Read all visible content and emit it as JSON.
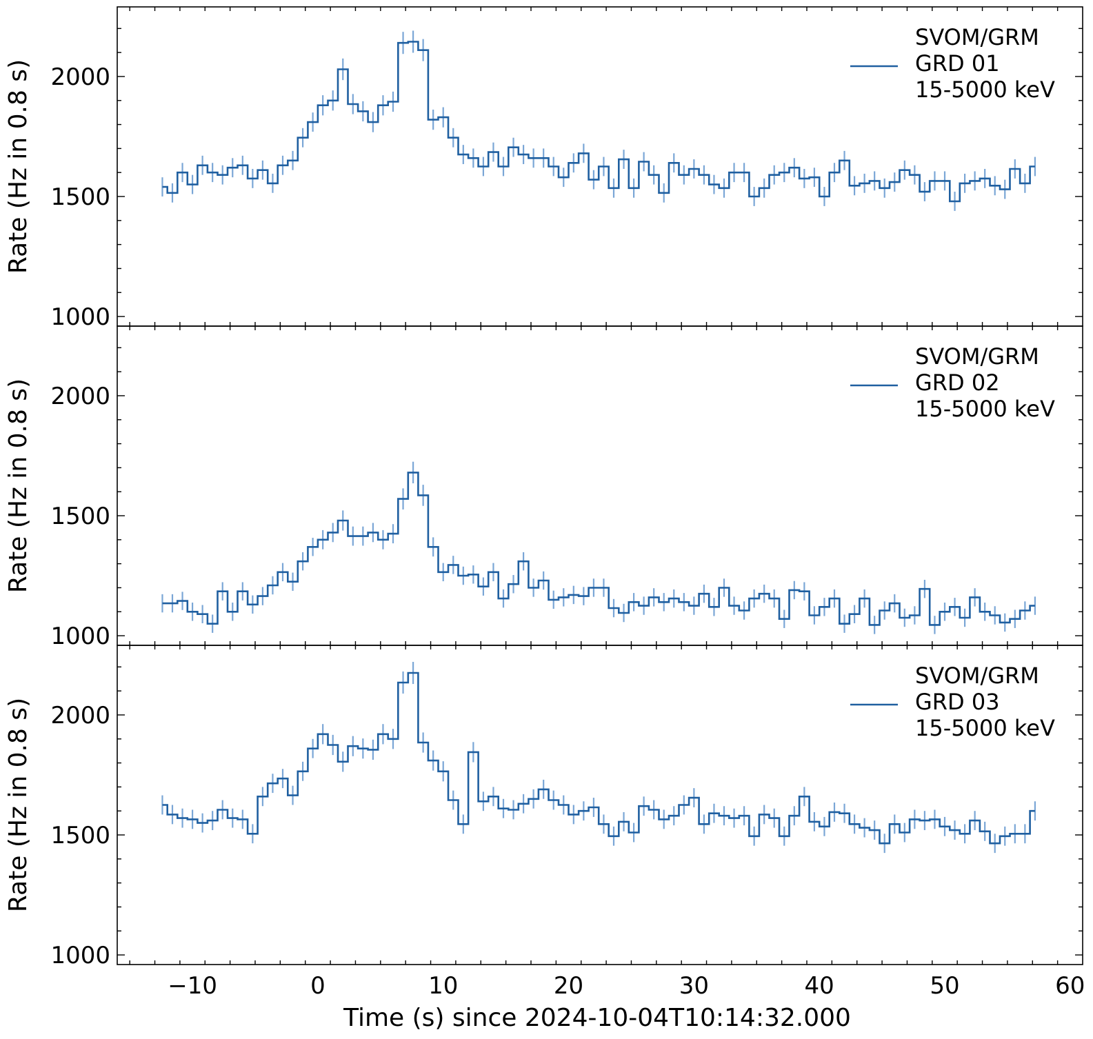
{
  "figure": {
    "xlabel": "Time (s) since 2024-10-04T10:14:32.000",
    "ylabel": "Rate (Hz in 0.8 s)",
    "xlim": [
      -16,
      61
    ],
    "xticks": [
      -10,
      0,
      10,
      20,
      30,
      40,
      50,
      60
    ],
    "xtick_labels": [
      "−10",
      "0",
      "10",
      "20",
      "30",
      "40",
      "50",
      "60"
    ],
    "line_color": "#1f5fa0",
    "errorbar_color": "#7aa6d6"
  },
  "chart_data": [
    {
      "type": "line",
      "drawstyle": "steps-mid",
      "legend": [
        "SVOM/GRM",
        "GRD 01",
        "15-5000 keV"
      ],
      "legend_position": "top-right",
      "ylim": [
        960,
        2290
      ],
      "yticks": [
        1000,
        1500,
        2000
      ],
      "x_start": -12.4,
      "bin_width": 0.8,
      "values": [
        1540,
        1515,
        1600,
        1550,
        1630,
        1600,
        1590,
        1620,
        1630,
        1575,
        1610,
        1555,
        1630,
        1650,
        1745,
        1810,
        1880,
        1900,
        2030,
        1885,
        1855,
        1810,
        1880,
        1895,
        2140,
        2145,
        2110,
        1820,
        1830,
        1745,
        1675,
        1660,
        1625,
        1685,
        1625,
        1705,
        1675,
        1660,
        1660,
        1625,
        1580,
        1640,
        1680,
        1570,
        1625,
        1535,
        1655,
        1535,
        1645,
        1590,
        1515,
        1640,
        1590,
        1615,
        1590,
        1550,
        1535,
        1600,
        1600,
        1500,
        1535,
        1590,
        1600,
        1620,
        1575,
        1580,
        1500,
        1600,
        1650,
        1545,
        1555,
        1565,
        1535,
        1560,
        1610,
        1590,
        1520,
        1565,
        1565,
        1480,
        1555,
        1565,
        1575,
        1545,
        1530,
        1615,
        1555,
        1625
      ],
      "errors": [
        40,
        40,
        40,
        40,
        40,
        40,
        40,
        40,
        40,
        40,
        40,
        40,
        40,
        40,
        40,
        40,
        42,
        42,
        45,
        42,
        42,
        42,
        42,
        42,
        46,
        46,
        46,
        42,
        42,
        40,
        40,
        40,
        40,
        40,
        40,
        40,
        40,
        40,
        40,
        40,
        40,
        40,
        40,
        40,
        40,
        40,
        40,
        40,
        40,
        40,
        40,
        40,
        40,
        40,
        40,
        40,
        40,
        40,
        40,
        40,
        40,
        40,
        40,
        40,
        40,
        40,
        40,
        40,
        40,
        40,
        40,
        40,
        40,
        40,
        40,
        40,
        40,
        40,
        40,
        40,
        40,
        40,
        40,
        40,
        40,
        40,
        40,
        40
      ]
    },
    {
      "type": "line",
      "drawstyle": "steps-mid",
      "legend": [
        "SVOM/GRM",
        "GRD 02",
        "15-5000 keV"
      ],
      "legend_position": "top-right",
      "ylim": [
        960,
        2290
      ],
      "yticks": [
        1000,
        1500,
        2000
      ],
      "x_start": -12.4,
      "bin_width": 0.8,
      "values": [
        1135,
        1135,
        1145,
        1100,
        1090,
        1050,
        1185,
        1100,
        1185,
        1130,
        1165,
        1210,
        1265,
        1225,
        1310,
        1370,
        1400,
        1430,
        1480,
        1415,
        1415,
        1430,
        1400,
        1425,
        1570,
        1680,
        1585,
        1370,
        1265,
        1295,
        1250,
        1255,
        1205,
        1265,
        1155,
        1215,
        1310,
        1200,
        1230,
        1150,
        1160,
        1170,
        1165,
        1200,
        1200,
        1115,
        1095,
        1140,
        1125,
        1160,
        1140,
        1155,
        1140,
        1125,
        1175,
        1120,
        1200,
        1125,
        1105,
        1155,
        1175,
        1155,
        1070,
        1190,
        1185,
        1085,
        1120,
        1155,
        1050,
        1090,
        1155,
        1045,
        1105,
        1135,
        1075,
        1085,
        1195,
        1045,
        1100,
        1120,
        1075,
        1160,
        1100,
        1085,
        1055,
        1070,
        1105,
        1125
      ],
      "errors": [
        38,
        38,
        38,
        38,
        38,
        38,
        38,
        38,
        38,
        38,
        38,
        38,
        38,
        38,
        38,
        38,
        40,
        40,
        42,
        40,
        40,
        40,
        40,
        40,
        44,
        45,
        44,
        40,
        38,
        38,
        38,
        38,
        38,
        38,
        38,
        38,
        38,
        38,
        38,
        38,
        38,
        38,
        38,
        38,
        38,
        38,
        38,
        38,
        38,
        38,
        38,
        38,
        38,
        38,
        38,
        38,
        38,
        38,
        38,
        38,
        38,
        38,
        38,
        38,
        38,
        38,
        38,
        38,
        38,
        38,
        38,
        38,
        38,
        38,
        38,
        38,
        38,
        38,
        38,
        38,
        38,
        38,
        38,
        38,
        38,
        38,
        38,
        38
      ]
    },
    {
      "type": "line",
      "drawstyle": "steps-mid",
      "legend": [
        "SVOM/GRM",
        "GRD 03",
        "15-5000 keV"
      ],
      "legend_position": "top-right",
      "ylim": [
        960,
        2290
      ],
      "yticks": [
        1000,
        1500,
        2000
      ],
      "x_start": -12.4,
      "bin_width": 0.8,
      "values": [
        1625,
        1585,
        1570,
        1565,
        1550,
        1560,
        1605,
        1570,
        1565,
        1505,
        1660,
        1715,
        1735,
        1665,
        1765,
        1860,
        1920,
        1875,
        1805,
        1870,
        1860,
        1855,
        1920,
        1900,
        2135,
        2175,
        1885,
        1810,
        1765,
        1645,
        1545,
        1845,
        1640,
        1660,
        1610,
        1605,
        1630,
        1650,
        1690,
        1645,
        1625,
        1585,
        1600,
        1615,
        1545,
        1495,
        1555,
        1510,
        1620,
        1605,
        1565,
        1580,
        1625,
        1655,
        1545,
        1590,
        1580,
        1570,
        1580,
        1495,
        1585,
        1570,
        1495,
        1580,
        1660,
        1555,
        1535,
        1595,
        1590,
        1545,
        1530,
        1520,
        1465,
        1545,
        1510,
        1565,
        1560,
        1565,
        1535,
        1520,
        1505,
        1560,
        1515,
        1465,
        1495,
        1505,
        1505,
        1600
      ],
      "errors": [
        40,
        40,
        40,
        40,
        40,
        40,
        40,
        40,
        40,
        40,
        40,
        40,
        40,
        40,
        40,
        40,
        42,
        42,
        42,
        42,
        42,
        42,
        42,
        42,
        46,
        46,
        42,
        42,
        42,
        40,
        40,
        42,
        40,
        40,
        40,
        40,
        40,
        40,
        40,
        40,
        40,
        40,
        40,
        40,
        40,
        40,
        40,
        40,
        40,
        40,
        40,
        40,
        40,
        40,
        40,
        40,
        40,
        40,
        40,
        40,
        40,
        40,
        40,
        40,
        40,
        40,
        40,
        40,
        40,
        40,
        40,
        40,
        40,
        40,
        40,
        40,
        40,
        40,
        40,
        40,
        40,
        40,
        40,
        40,
        40,
        40,
        40,
        40
      ]
    }
  ]
}
